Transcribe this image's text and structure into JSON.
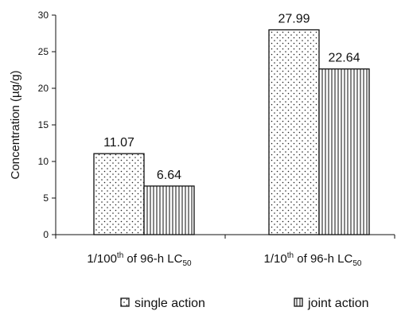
{
  "chart_data": {
    "type": "bar",
    "ylabel": "Concentration (µg/g)",
    "ylim": [
      0,
      30
    ],
    "yticks": [
      0,
      5,
      10,
      15,
      20,
      25,
      30
    ],
    "categories": [
      {
        "prefix": "1/100",
        "sup": "th",
        "middle": " of 96-h LC",
        "sub": "50"
      },
      {
        "prefix": "1/10",
        "sup": "th",
        "middle": " of 96-h LC",
        "sub": "50"
      }
    ],
    "series": [
      {
        "name": "single action",
        "values": [
          11.07,
          27.99
        ],
        "labels": [
          "11.07",
          "27.99"
        ],
        "pattern": "dots"
      },
      {
        "name": "joint action",
        "values": [
          6.64,
          22.64
        ],
        "labels": [
          "6.64",
          "22.64"
        ],
        "pattern": "vertical-lines"
      }
    ],
    "legend_position": "bottom",
    "grid": false
  }
}
